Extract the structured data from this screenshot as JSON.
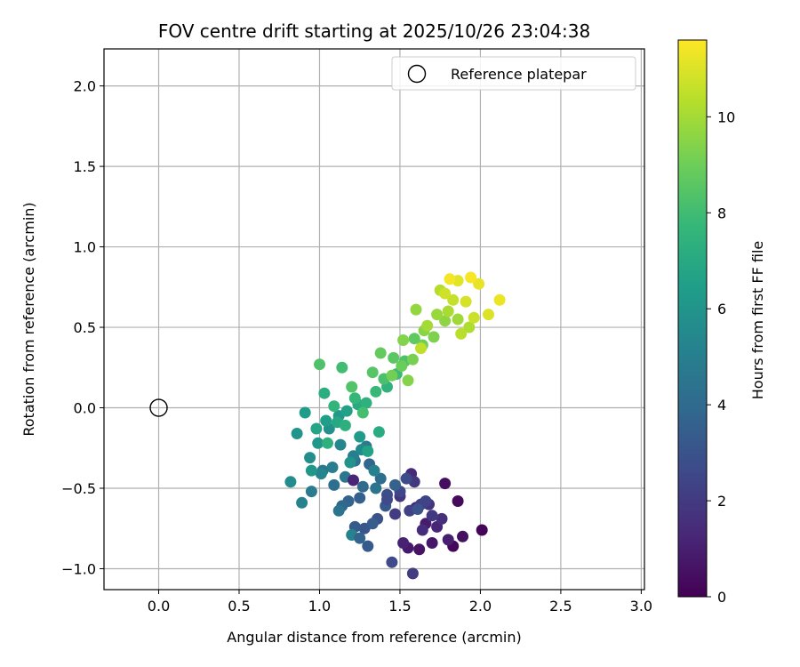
{
  "chart_data": {
    "type": "scatter",
    "title": "FOV centre drift starting at 2025/10/26 23:04:38",
    "xlabel": "Angular distance from reference (arcmin)",
    "ylabel": "Rotation from reference (arcmin)",
    "xlim": [
      -0.34,
      3.02
    ],
    "ylim": [
      -1.13,
      2.23
    ],
    "xticks": [
      0.0,
      0.5,
      1.0,
      1.5,
      2.0,
      2.5,
      3.0
    ],
    "xtick_labels": [
      "0.0",
      "0.5",
      "1.0",
      "1.5",
      "2.0",
      "2.5",
      "3.0"
    ],
    "yticks": [
      -1.0,
      -0.5,
      0.0,
      0.5,
      1.0,
      1.5,
      2.0
    ],
    "ytick_labels": [
      "−1.0",
      "−0.5",
      "0.0",
      "0.5",
      "1.0",
      "1.5",
      "2.0"
    ],
    "grid": true,
    "legend": {
      "placement": "top-right",
      "entries": [
        "Reference platepar"
      ]
    },
    "reference_point": {
      "name": "Reference platepar",
      "x": 0.0,
      "y": 0.0
    },
    "colorbar": {
      "label": "Hours from first FF file",
      "colormap": "viridis",
      "range": [
        0,
        11.6
      ],
      "ticks": [
        0,
        2,
        4,
        6,
        8,
        10
      ],
      "tick_labels": [
        "0",
        "2",
        "4",
        "6",
        "8",
        "10"
      ]
    },
    "colormap_stops": [
      "#440154",
      "#482878",
      "#3e4989",
      "#31688e",
      "#26828e",
      "#1f9e89",
      "#35b779",
      "#6ece58",
      "#b5de2b",
      "#fde725"
    ],
    "points": {
      "hours": [
        0.1,
        0.2,
        0.3,
        0.4,
        0.5,
        0.6,
        0.7,
        0.8,
        0.9,
        1.0,
        1.1,
        1.2,
        1.3,
        1.4,
        1.5,
        1.6,
        1.7,
        1.8,
        1.9,
        2.0,
        2.1,
        2.2,
        2.3,
        2.4,
        2.5,
        2.6,
        2.7,
        2.8,
        2.9,
        3.0,
        3.1,
        3.2,
        3.3,
        3.4,
        3.5,
        3.6,
        3.7,
        3.8,
        3.9,
        4.0,
        4.1,
        4.2,
        4.3,
        4.4,
        4.5,
        4.6,
        4.7,
        4.8,
        4.9,
        5.0,
        5.1,
        5.2,
        5.3,
        5.4,
        5.5,
        5.6,
        5.7,
        5.8,
        5.9,
        6.0,
        6.1,
        6.2,
        6.3,
        6.4,
        6.5,
        6.6,
        6.7,
        6.8,
        6.9,
        7.0,
        7.1,
        7.2,
        7.3,
        7.4,
        7.5,
        7.6,
        7.7,
        7.8,
        7.9,
        8.0,
        8.1,
        8.2,
        8.3,
        8.4,
        8.5,
        8.6,
        8.7,
        8.8,
        8.9,
        9.0,
        9.1,
        9.2,
        9.3,
        9.4,
        9.5,
        9.6,
        9.7,
        9.8,
        9.9,
        10.0,
        10.1,
        10.2,
        10.3,
        10.4,
        10.5,
        10.6,
        10.7,
        10.8,
        10.9,
        11.0,
        11.1,
        11.2,
        11.3,
        11.4,
        11.5,
        2.1,
        2.6,
        3.3,
        4.4,
        5.2,
        6.1,
        7.3,
        8.3,
        9.4,
        1.2,
        3.7
      ],
      "x": [
        2.01,
        1.83,
        1.86,
        1.78,
        1.89,
        1.62,
        1.7,
        1.55,
        1.66,
        1.8,
        1.52,
        1.73,
        1.6,
        1.57,
        1.64,
        1.76,
        1.68,
        1.5,
        1.59,
        1.7,
        1.47,
        1.63,
        1.56,
        1.66,
        1.5,
        1.45,
        1.54,
        1.42,
        1.36,
        1.61,
        1.28,
        1.41,
        1.22,
        1.33,
        1.25,
        1.47,
        1.18,
        1.31,
        1.14,
        1.27,
        1.38,
        1.09,
        1.22,
        1.35,
        1.02,
        1.16,
        1.29,
        0.95,
        1.08,
        1.21,
        1.34,
        0.89,
        1.01,
        1.13,
        1.26,
        0.82,
        0.94,
        1.06,
        1.19,
        0.86,
        0.99,
        1.12,
        1.25,
        0.91,
        1.04,
        1.17,
        1.3,
        0.98,
        1.11,
        1.24,
        1.37,
        1.03,
        1.16,
        1.29,
        1.42,
        1.09,
        1.22,
        1.35,
        1.48,
        1.14,
        1.27,
        1.4,
        1.53,
        1.2,
        1.33,
        1.46,
        1.59,
        1.38,
        1.51,
        1.64,
        1.45,
        1.58,
        1.71,
        1.52,
        1.65,
        1.78,
        1.6,
        1.73,
        1.86,
        1.67,
        1.8,
        1.93,
        1.75,
        1.88,
        1.63,
        1.83,
        1.96,
        1.78,
        1.91,
        2.05,
        1.86,
        1.99,
        2.12,
        1.81,
        1.94,
        1.58,
        1.42,
        1.3,
        1.12,
        1.2,
        0.95,
        1.05,
        1.0,
        1.55,
        1.21,
        1.25
      ],
      "y": [
        -0.76,
        -0.86,
        -0.58,
        -0.47,
        -0.8,
        -0.88,
        -0.84,
        -0.87,
        -0.72,
        -0.82,
        -0.84,
        -0.74,
        -0.62,
        -0.41,
        -0.76,
        -0.69,
        -0.6,
        -0.55,
        -0.46,
        -0.67,
        -0.66,
        -0.6,
        -0.64,
        -0.58,
        -0.52,
        -0.96,
        -0.44,
        -0.54,
        -0.69,
        -0.63,
        -0.75,
        -0.61,
        -0.74,
        -0.72,
        -0.56,
        -0.48,
        -0.58,
        -0.35,
        -0.61,
        -0.49,
        -0.44,
        -0.48,
        -0.33,
        -0.5,
        -0.39,
        -0.43,
        -0.24,
        -0.52,
        -0.37,
        -0.3,
        -0.39,
        -0.59,
        -0.41,
        -0.23,
        -0.26,
        -0.46,
        -0.31,
        -0.13,
        -0.34,
        -0.16,
        -0.22,
        -0.05,
        -0.18,
        -0.03,
        -0.08,
        -0.02,
        -0.27,
        -0.13,
        -0.09,
        0.02,
        -0.15,
        0.09,
        -0.11,
        0.03,
        0.13,
        0.01,
        0.06,
        0.1,
        0.21,
        0.25,
        -0.03,
        0.18,
        0.29,
        0.13,
        0.22,
        0.31,
        0.43,
        0.34,
        0.26,
        0.39,
        0.2,
        0.3,
        0.44,
        0.42,
        0.48,
        0.54,
        0.61,
        0.58,
        0.55,
        0.51,
        0.6,
        0.5,
        0.73,
        0.46,
        0.37,
        0.67,
        0.56,
        0.71,
        0.66,
        0.58,
        0.79,
        0.77,
        0.67,
        0.8,
        0.81,
        -1.03,
        -0.57,
        -0.86,
        -0.64,
        -0.79,
        -0.39,
        -0.22,
        0.27,
        0.17,
        -0.45,
        -0.81
      ]
    }
  }
}
